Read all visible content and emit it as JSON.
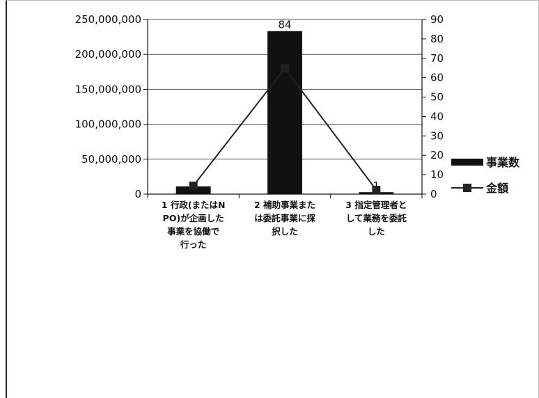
{
  "chart_data": {
    "type": "bar",
    "categories": [
      [
        "1 行政(またはN",
        "PO)が企画した",
        "事業を協働で",
        "行った"
      ],
      [
        "2 補助事業また",
        "は委託事業に採",
        "択した"
      ],
      [
        "3 指定管理者と",
        "して業務を委託",
        "した"
      ]
    ],
    "series": [
      {
        "name": "事業数",
        "kind": "bar",
        "axis": "right",
        "values": [
          4,
          84,
          1
        ],
        "data_labels": [
          "",
          "84",
          "1"
        ]
      },
      {
        "name": "金額",
        "kind": "line",
        "axis": "left",
        "values": [
          12000000,
          180000000,
          6000000
        ]
      }
    ],
    "left_axis": {
      "ylim": [
        0,
        250000000
      ],
      "ticks": [
        "0",
        "50,000,000",
        "100,000,000",
        "150,000,000",
        "200,000,000",
        "250,000,000"
      ]
    },
    "right_axis": {
      "ylim": [
        0,
        90
      ],
      "ticks": [
        "0",
        "10",
        "20",
        "30",
        "40",
        "50",
        "60",
        "70",
        "80",
        "90"
      ]
    },
    "grid": true,
    "legend": "right",
    "colors": {
      "bar": "#111111",
      "line": "#222222",
      "grid": "#555555"
    }
  }
}
